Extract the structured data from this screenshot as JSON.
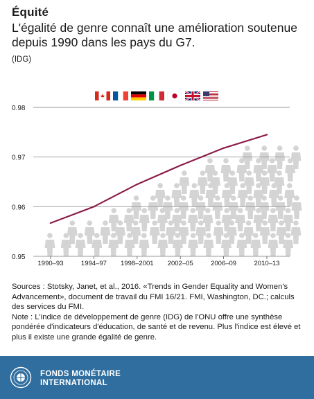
{
  "header": {
    "kicker": "Équité",
    "headline": "L'égalité de genre connaît une amélioration soutenue depuis 1990 dans les pays du G7.",
    "unit": "(IDG)"
  },
  "flags": [
    "canada-flag",
    "france-flag",
    "germany-flag",
    "italy-flag",
    "japan-flag",
    "uk-flag",
    "usa-flag"
  ],
  "chart_data": {
    "type": "line",
    "categories": [
      "1990–93",
      "1994–97",
      "1998–2001",
      "2002–05",
      "2006–09",
      "2010–13"
    ],
    "ylim": [
      0.95,
      0.98
    ],
    "y_ticks": [
      "0.95",
      "0.96",
      "0.97",
      "0.98"
    ],
    "series": [
      {
        "values": [
          0.9567,
          0.96,
          0.9645,
          0.9683,
          0.9718,
          0.9745
        ]
      }
    ],
    "grid": true,
    "line_color": "#8b1c4a",
    "grid_color": "#9a9a9a",
    "figure_color": "#d4d4d4"
  },
  "sources": {
    "line1": "Sources : Stotsky, Janet, et al., 2016. «Trends in Gender Equality and Women's Advancement», document de travail du FMI 16/21. FMI, Washington, DC.; calculs des services du FMI.",
    "line2": "Note : L'indice de développement de genre (IDG) de l'ONU offre une synthèse pondérée d'indicateurs d'éducation, de santé et de revenu. Plus l'indice est élevé et plus il existe une grande égalité de genre."
  },
  "footer": {
    "org_line1": "FONDS MONÉTAIRE",
    "org_line2": "INTERNATIONAL",
    "background": "#2f6e9f"
  }
}
